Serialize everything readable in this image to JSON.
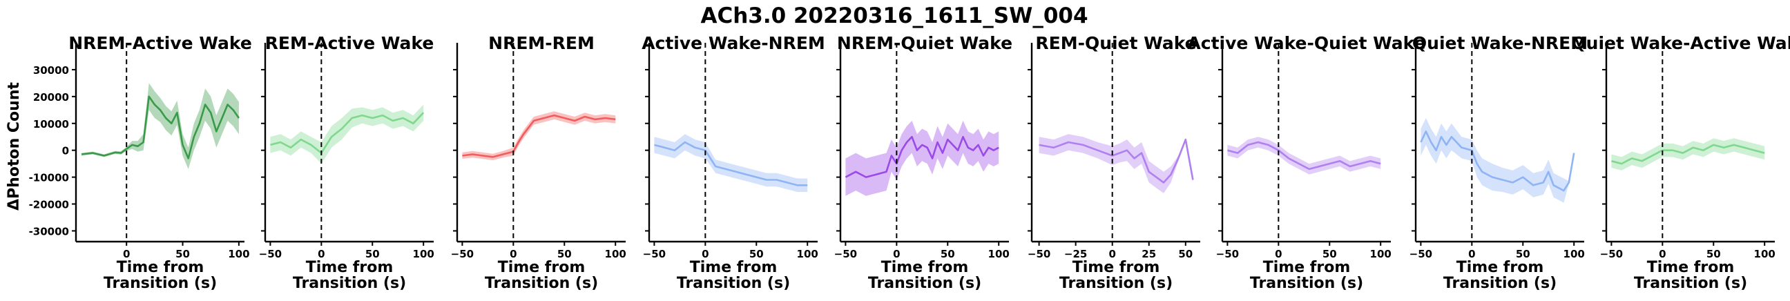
{
  "figure": {
    "suptitle": "ACh3.0 20220316_1611_SW_004",
    "ylabel": "ΔPhoton Count",
    "xlabel": "Time from\nTransition (s)"
  },
  "colors": {
    "dark_green": "#3a9a49",
    "light_green": "#7fd88d",
    "red": "#f25c5c",
    "light_blue": "#8fb4f5",
    "purple": "#9a4ae8",
    "light_purple": "#b07ff0"
  },
  "chart_data": [
    {
      "type": "line",
      "title": "NREM-Active Wake",
      "color": "dark_green",
      "xlim": [
        -45,
        105
      ],
      "ylim": [
        -34000,
        40000
      ],
      "xticks": [
        0,
        50,
        100
      ],
      "yticks": [
        -30000,
        -20000,
        -10000,
        0,
        10000,
        20000,
        30000
      ],
      "x": [
        -40,
        -30,
        -20,
        -10,
        -5,
        0,
        5,
        10,
        15,
        20,
        25,
        30,
        35,
        40,
        45,
        50,
        55,
        60,
        65,
        70,
        75,
        80,
        85,
        90,
        95,
        100
      ],
      "y": [
        -1500,
        -1000,
        -2000,
        -800,
        -1000,
        500,
        2000,
        1500,
        3000,
        20000,
        17000,
        15000,
        12000,
        10000,
        14000,
        2000,
        -3000,
        5000,
        10000,
        17000,
        14000,
        7000,
        12000,
        17000,
        15000,
        12000
      ],
      "band": [
        500,
        500,
        500,
        500,
        600,
        800,
        1500,
        2000,
        3000,
        5000,
        5000,
        4500,
        4500,
        4500,
        4500,
        4000,
        4000,
        5000,
        5000,
        6000,
        6000,
        6000,
        6000,
        6000,
        6000,
        6000
      ]
    },
    {
      "type": "line",
      "title": "REM-Active Wake",
      "color": "light_green",
      "xlim": [
        -55,
        110
      ],
      "ylim": [
        -34000,
        40000
      ],
      "xticks": [
        -50,
        0,
        50,
        100
      ],
      "yticks": [],
      "x": [
        -50,
        -40,
        -30,
        -20,
        -10,
        0,
        10,
        20,
        30,
        40,
        50,
        60,
        70,
        80,
        90,
        100
      ],
      "y": [
        2000,
        3000,
        1000,
        4000,
        2000,
        -1000,
        5000,
        8000,
        12000,
        13000,
        12000,
        13000,
        11000,
        12000,
        10000,
        14000
      ],
      "band": [
        3000,
        3000,
        3000,
        3000,
        3000,
        4000,
        4000,
        4000,
        3500,
        3000,
        3000,
        3000,
        3000,
        3000,
        3000,
        3000
      ]
    },
    {
      "type": "line",
      "title": "NREM-REM",
      "color": "red",
      "xlim": [
        -55,
        110
      ],
      "ylim": [
        -34000,
        40000
      ],
      "xticks": [
        -50,
        0,
        50,
        100
      ],
      "yticks": [],
      "x": [
        -50,
        -40,
        -30,
        -20,
        -10,
        0,
        5,
        10,
        20,
        30,
        40,
        50,
        60,
        70,
        80,
        90,
        100
      ],
      "y": [
        -2000,
        -1500,
        -2000,
        -2500,
        -1500,
        -500,
        3000,
        6000,
        11000,
        12000,
        13000,
        12000,
        11000,
        12500,
        11500,
        12000,
        11500
      ],
      "band": [
        1200,
        1200,
        1200,
        1200,
        1200,
        1500,
        1500,
        1500,
        1500,
        1500,
        1500,
        1500,
        1500,
        1500,
        1500,
        1500,
        1500
      ]
    },
    {
      "type": "line",
      "title": "Active Wake-NREM",
      "color": "light_blue",
      "xlim": [
        -55,
        110
      ],
      "ylim": [
        -34000,
        40000
      ],
      "xticks": [
        -50,
        0,
        50,
        100
      ],
      "yticks": [],
      "x": [
        -50,
        -40,
        -30,
        -20,
        -10,
        0,
        10,
        20,
        30,
        40,
        50,
        60,
        70,
        80,
        90,
        100
      ],
      "y": [
        2000,
        1000,
        0,
        3000,
        1000,
        0,
        -6000,
        -7000,
        -8000,
        -9000,
        -10000,
        -11000,
        -11000,
        -12000,
        -13000,
        -13000
      ],
      "band": [
        3000,
        3000,
        3000,
        3000,
        3000,
        3000,
        2500,
        2500,
        2500,
        2500,
        2500,
        2500,
        2500,
        2500,
        2500,
        2500
      ]
    },
    {
      "type": "line",
      "title": "NREM-Quiet Wake",
      "color": "purple",
      "xlim": [
        -55,
        110
      ],
      "ylim": [
        -34000,
        40000
      ],
      "xticks": [
        -50,
        0,
        50,
        100
      ],
      "yticks": [],
      "x": [
        -50,
        -40,
        -30,
        -20,
        -10,
        -5,
        0,
        5,
        10,
        15,
        20,
        25,
        30,
        35,
        40,
        45,
        50,
        55,
        60,
        65,
        70,
        75,
        80,
        85,
        90,
        95,
        100
      ],
      "y": [
        -10000,
        -8000,
        -10000,
        -9000,
        -8000,
        -2000,
        -5000,
        0,
        3000,
        5000,
        0,
        2000,
        1000,
        -3000,
        3000,
        -1000,
        4000,
        2000,
        0,
        5000,
        1000,
        0,
        2000,
        -2000,
        1000,
        0,
        1000
      ],
      "band": [
        7000,
        7000,
        7000,
        7000,
        7000,
        6000,
        6000,
        6000,
        6000,
        6000,
        6000,
        6000,
        6000,
        6000,
        6000,
        6000,
        6000,
        6000,
        6000,
        6000,
        6000,
        6000,
        6000,
        6000,
        6000,
        6000,
        6000
      ]
    },
    {
      "type": "line",
      "title": "REM-Quiet Wake",
      "color": "light_purple",
      "xlim": [
        -55,
        60
      ],
      "ylim": [
        -34000,
        40000
      ],
      "xticks": [
        -50,
        -25,
        0,
        25,
        50
      ],
      "yticks": [],
      "x": [
        -50,
        -40,
        -30,
        -20,
        -10,
        0,
        5,
        10,
        15,
        20,
        25,
        30,
        35,
        40,
        45,
        50,
        55
      ],
      "y": [
        2000,
        1000,
        3000,
        2000,
        0,
        -2000,
        -1000,
        0,
        -3000,
        -1000,
        -8000,
        -10000,
        -12000,
        -9000,
        -3000,
        4000,
        -11000
      ],
      "band": [
        3000,
        3000,
        3000,
        3000,
        3000,
        3500,
        3500,
        4000,
        4000,
        4000,
        4000,
        4000,
        4000,
        3000,
        1000,
        500,
        500
      ]
    },
    {
      "type": "line",
      "title": "Active Wake-Quiet Wake",
      "color": "light_purple",
      "xlim": [
        -55,
        110
      ],
      "ylim": [
        -34000,
        40000
      ],
      "xticks": [
        -50,
        0,
        50,
        100
      ],
      "yticks": [],
      "x": [
        -50,
        -40,
        -30,
        -20,
        -10,
        0,
        10,
        20,
        30,
        40,
        50,
        60,
        70,
        80,
        90,
        100
      ],
      "y": [
        0,
        -1000,
        2000,
        3000,
        2000,
        0,
        -3000,
        -5000,
        -7000,
        -6000,
        -5000,
        -4000,
        -6000,
        -5000,
        -4000,
        -5000
      ],
      "band": [
        2000,
        2000,
        2000,
        2000,
        2000,
        2000,
        2000,
        2000,
        2000,
        2000,
        2000,
        2000,
        2000,
        2000,
        2000,
        2000
      ]
    },
    {
      "type": "line",
      "title": "Quiet Wake-NREM",
      "color": "light_blue",
      "xlim": [
        -55,
        110
      ],
      "ylim": [
        -34000,
        40000
      ],
      "xticks": [
        -50,
        0,
        50,
        100
      ],
      "yticks": [],
      "x": [
        -50,
        -45,
        -40,
        -35,
        -30,
        -25,
        -20,
        -10,
        0,
        5,
        10,
        20,
        30,
        40,
        50,
        60,
        70,
        75,
        80,
        90,
        95,
        100
      ],
      "y": [
        3000,
        7000,
        3000,
        0,
        5000,
        2000,
        5000,
        1000,
        0,
        -5000,
        -8000,
        -10000,
        -11000,
        -12000,
        -10000,
        -13000,
        -12000,
        -8000,
        -13000,
        -15000,
        -12000,
        -1000
      ],
      "band": [
        5000,
        5000,
        5000,
        5000,
        5000,
        5000,
        5000,
        4000,
        4000,
        5000,
        5000,
        5000,
        4500,
        4500,
        4500,
        4500,
        4500,
        4500,
        4500,
        4500,
        500,
        500
      ]
    },
    {
      "type": "line",
      "title": "Quiet Wake-Active Wake",
      "color": "light_green",
      "xlim": [
        -55,
        110
      ],
      "ylim": [
        -34000,
        40000
      ],
      "xticks": [
        -50,
        0,
        50,
        100
      ],
      "yticks": [],
      "x": [
        -50,
        -40,
        -30,
        -20,
        -10,
        0,
        10,
        20,
        30,
        40,
        50,
        60,
        70,
        80,
        90,
        100
      ],
      "y": [
        -4000,
        -5000,
        -3000,
        -4000,
        -2000,
        0,
        0,
        -1000,
        1000,
        0,
        2000,
        1000,
        2000,
        1000,
        0,
        -1000
      ],
      "band": [
        2500,
        2500,
        2500,
        2500,
        2500,
        2500,
        2500,
        2500,
        2500,
        2500,
        2500,
        2500,
        2500,
        2500,
        2500,
        2500
      ]
    }
  ]
}
